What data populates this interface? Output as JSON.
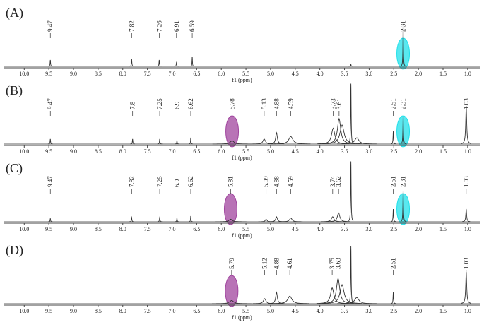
{
  "chart_data": [
    {
      "type": "spectrum",
      "title": "(A)",
      "x_label": "f1 (ppm)",
      "xlim": [
        10.42,
        0.74
      ],
      "xticks": [
        {
          "value": 10,
          "label": "10.0"
        },
        9.5,
        {
          "value": 9,
          "label": "9.0"
        },
        8.5,
        {
          "value": 8,
          "label": "8.0"
        },
        7.5,
        {
          "value": 7,
          "label": "7.0"
        },
        6.5,
        {
          "value": 6,
          "label": "6.0"
        },
        5.5,
        {
          "value": 5,
          "label": "5.0"
        },
        4.5,
        {
          "value": 4,
          "label": "4.0"
        },
        3.5,
        {
          "value": 3,
          "label": "3.0"
        },
        2.5,
        {
          "value": 2,
          "label": "2.0"
        },
        1.5,
        {
          "value": 1,
          "label": "1.0"
        }
      ],
      "ylim": [
        0,
        100
      ],
      "color": "#333333",
      "peaks": {
        "x": [
          9.47,
          7.82,
          7.26,
          6.91,
          6.59,
          2.31
        ],
        "values": [
          10,
          12,
          10,
          6,
          15,
          72
        ],
        "widths": [
          0.006,
          0.006,
          0.006,
          0.006,
          0.005,
          0.005
        ]
      },
      "other_peaks": {
        "x": [
          3.37
        ],
        "values": [
          3
        ],
        "widths": [
          0.006
        ]
      },
      "highlights": [
        {
          "x": 2.31,
          "color": "#22e0ea"
        }
      ]
    },
    {
      "type": "spectrum",
      "title": "(B)",
      "x_label": "f1 (ppm)",
      "xlim": [
        10.42,
        0.74
      ],
      "xticks": [
        {
          "value": 10,
          "label": "10.0"
        },
        9.5,
        {
          "value": 9,
          "label": "9.0"
        },
        8.5,
        {
          "value": 8,
          "label": "8.0"
        },
        7.5,
        {
          "value": 7,
          "label": "7.0"
        },
        6.5,
        {
          "value": 6,
          "label": "6.0"
        },
        5.5,
        {
          "value": 5,
          "label": "5.0"
        },
        4.5,
        {
          "value": 4,
          "label": "4.0"
        },
        3.5,
        {
          "value": 3,
          "label": "3.0"
        },
        2.5,
        {
          "value": 2,
          "label": "2.0"
        },
        1.5,
        {
          "value": 1,
          "label": "1.0"
        }
      ],
      "ylim": [
        0,
        100
      ],
      "color": "#333333",
      "peaks": {
        "x": [
          9.47,
          7.8,
          7.25,
          6.9,
          6.62,
          5.78,
          5.13,
          4.88,
          4.59,
          3.73,
          3.61,
          2.51,
          2.31,
          1.03
        ],
        "values": [
          8,
          8,
          8,
          6,
          10,
          5,
          8,
          18,
          12,
          25,
          40,
          20,
          45,
          60
        ],
        "widths": [
          0.006,
          0.006,
          0.006,
          0.006,
          0.005,
          0.05,
          0.03,
          0.02,
          0.05,
          0.04,
          0.04,
          0.006,
          0.006,
          0.012
        ]
      },
      "other_peaks": {
        "x": [
          3.37,
          3.55,
          3.25
        ],
        "values": [
          95,
          30,
          10
        ],
        "widths": [
          0.006,
          0.05,
          0.05
        ]
      },
      "highlights": [
        {
          "x": 5.78,
          "color": "#a0449e"
        },
        {
          "x": 2.31,
          "color": "#22e0ea"
        }
      ]
    },
    {
      "type": "spectrum",
      "title": "(C)",
      "x_label": "f1 (ppm)",
      "xlim": [
        10.42,
        0.74
      ],
      "xticks": [
        {
          "value": 10,
          "label": "10.0"
        },
        9.5,
        {
          "value": 9,
          "label": "9.0"
        },
        8.5,
        {
          "value": 8,
          "label": "8.0"
        },
        7.5,
        {
          "value": 7,
          "label": "7.0"
        },
        6.5,
        {
          "value": 6,
          "label": "6.0"
        },
        5.5,
        {
          "value": 5,
          "label": "5.0"
        },
        4.5,
        {
          "value": 4,
          "label": "4.0"
        },
        3.5,
        {
          "value": 3,
          "label": "3.0"
        },
        2.5,
        {
          "value": 2,
          "label": "2.0"
        },
        1.5,
        {
          "value": 1,
          "label": "1.0"
        }
      ],
      "ylim": [
        0,
        100
      ],
      "color": "#333333",
      "peaks": {
        "x": [
          9.47,
          7.82,
          7.25,
          6.9,
          6.62,
          5.81,
          5.09,
          4.88,
          4.59,
          3.74,
          3.62,
          2.51,
          2.31,
          1.03
        ],
        "values": [
          5,
          7,
          7,
          6,
          9,
          4,
          4,
          8,
          6,
          8,
          14,
          20,
          50,
          20
        ],
        "widths": [
          0.006,
          0.006,
          0.006,
          0.006,
          0.005,
          0.04,
          0.02,
          0.02,
          0.03,
          0.03,
          0.03,
          0.006,
          0.006,
          0.01
        ]
      },
      "other_peaks": {
        "x": [
          3.37
        ],
        "values": [
          95
        ],
        "widths": [
          0.006
        ]
      },
      "highlights": [
        {
          "x": 5.81,
          "color": "#a0449e"
        },
        {
          "x": 2.31,
          "color": "#22e0ea"
        }
      ]
    },
    {
      "type": "spectrum",
      "title": "(D)",
      "x_label": "f1 (ppm)",
      "xlim": [
        10.42,
        0.74
      ],
      "xticks": [
        {
          "value": 10,
          "label": "10.0"
        },
        9.5,
        {
          "value": 9,
          "label": "9.0"
        },
        8.5,
        {
          "value": 8,
          "label": "8.0"
        },
        7.5,
        {
          "value": 7,
          "label": "7.0"
        },
        6.5,
        {
          "value": 6,
          "label": "6.0"
        },
        5.5,
        {
          "value": 5,
          "label": "5.0"
        },
        4.5,
        {
          "value": 4,
          "label": "4.0"
        },
        3.5,
        {
          "value": 3,
          "label": "3.0"
        },
        2.5,
        {
          "value": 2,
          "label": "2.0"
        },
        1.5,
        {
          "value": 1,
          "label": "1.0"
        }
      ],
      "ylim": [
        0,
        100
      ],
      "color": "#333333",
      "peaks": {
        "x": [
          5.79,
          5.12,
          4.88,
          4.61,
          3.75,
          3.63,
          2.51,
          1.03
        ],
        "values": [
          5,
          8,
          18,
          12,
          25,
          40,
          18,
          50
        ],
        "widths": [
          0.05,
          0.03,
          0.02,
          0.05,
          0.04,
          0.04,
          0.006,
          0.012
        ]
      },
      "other_peaks": {
        "x": [
          3.37,
          3.55,
          3.25
        ],
        "values": [
          90,
          30,
          10
        ],
        "widths": [
          0.006,
          0.05,
          0.05
        ]
      },
      "highlights": [
        {
          "x": 5.79,
          "color": "#a0449e"
        }
      ]
    }
  ]
}
